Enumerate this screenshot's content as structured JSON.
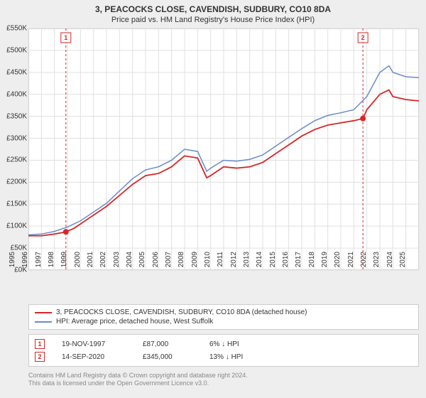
{
  "title": "3, PEACOCKS CLOSE, CAVENDISH, SUDBURY, CO10 8DA",
  "subtitle": "Price paid vs. HM Land Registry's House Price Index (HPI)",
  "chart": {
    "type": "line",
    "background_color": "#ffffff",
    "page_background": "#eeeeee",
    "grid_color": "#e0e0e0",
    "axis_font_size": 10,
    "title_fontsize": 12,
    "xlim": [
      1995,
      2025
    ],
    "ylim": [
      0,
      550
    ],
    "ytick_step": 50,
    "yticks_label_prefix": "£",
    "yticks_label_suffix": "K",
    "xticks": [
      1995,
      1996,
      1997,
      1998,
      1999,
      2000,
      2001,
      2002,
      2003,
      2004,
      2005,
      2006,
      2007,
      2008,
      2009,
      2010,
      2011,
      2012,
      2013,
      2014,
      2015,
      2016,
      2017,
      2018,
      2019,
      2020,
      2021,
      2022,
      2023,
      2024,
      2025
    ],
    "series": [
      {
        "name": "price_paid",
        "label": "3, PEACOCKS CLOSE, CAVENDISH, SUDBURY, CO10 8DA (detached house)",
        "color": "#d62728",
        "line_width": 1.8,
        "data": [
          [
            1995,
            78
          ],
          [
            1996,
            78
          ],
          [
            1997,
            82
          ],
          [
            1997.88,
            87
          ],
          [
            1998.5,
            95
          ],
          [
            1999,
            105
          ],
          [
            2000,
            125
          ],
          [
            2001,
            145
          ],
          [
            2002,
            170
          ],
          [
            2003,
            195
          ],
          [
            2004,
            215
          ],
          [
            2005,
            220
          ],
          [
            2006,
            235
          ],
          [
            2007,
            260
          ],
          [
            2008,
            255
          ],
          [
            2008.7,
            210
          ],
          [
            2009,
            215
          ],
          [
            2010,
            235
          ],
          [
            2011,
            232
          ],
          [
            2012,
            235
          ],
          [
            2013,
            245
          ],
          [
            2014,
            265
          ],
          [
            2015,
            285
          ],
          [
            2016,
            305
          ],
          [
            2017,
            320
          ],
          [
            2018,
            330
          ],
          [
            2019,
            335
          ],
          [
            2020,
            340
          ],
          [
            2020.7,
            345
          ],
          [
            2021,
            365
          ],
          [
            2022,
            400
          ],
          [
            2022.7,
            410
          ],
          [
            2023,
            395
          ],
          [
            2024,
            388
          ],
          [
            2025,
            385
          ]
        ]
      },
      {
        "name": "hpi",
        "label": "HPI: Average price, detached house, West Suffolk",
        "color": "#6a8bc9",
        "line_width": 1.5,
        "data": [
          [
            1995,
            80
          ],
          [
            1996,
            82
          ],
          [
            1997,
            88
          ],
          [
            1998,
            98
          ],
          [
            1999,
            112
          ],
          [
            2000,
            132
          ],
          [
            2001,
            152
          ],
          [
            2002,
            180
          ],
          [
            2003,
            208
          ],
          [
            2004,
            228
          ],
          [
            2005,
            235
          ],
          [
            2006,
            250
          ],
          [
            2007,
            275
          ],
          [
            2008,
            270
          ],
          [
            2008.7,
            225
          ],
          [
            2009,
            232
          ],
          [
            2010,
            250
          ],
          [
            2011,
            248
          ],
          [
            2012,
            252
          ],
          [
            2013,
            262
          ],
          [
            2014,
            282
          ],
          [
            2015,
            302
          ],
          [
            2016,
            322
          ],
          [
            2017,
            340
          ],
          [
            2018,
            352
          ],
          [
            2019,
            358
          ],
          [
            2020,
            365
          ],
          [
            2021,
            395
          ],
          [
            2022,
            450
          ],
          [
            2022.7,
            465
          ],
          [
            2023,
            450
          ],
          [
            2024,
            440
          ],
          [
            2025,
            438
          ]
        ]
      }
    ],
    "event_markers": [
      {
        "n": "1",
        "x": 1997.88,
        "y": 87,
        "box_color": "#d62728",
        "dot_color": "#d62728"
      },
      {
        "n": "2",
        "x": 2020.7,
        "y": 345,
        "box_color": "#d62728",
        "dot_color": "#d62728"
      }
    ]
  },
  "legend": {
    "border_color": "#cccccc",
    "items": [
      {
        "color": "#d62728",
        "label": "3, PEACOCKS CLOSE, CAVENDISH, SUDBURY, CO10 8DA (detached house)"
      },
      {
        "color": "#6a8bc9",
        "label": "HPI: Average price, detached house, West Suffolk"
      }
    ]
  },
  "events": [
    {
      "n": "1",
      "date": "19-NOV-1997",
      "price": "£87,000",
      "delta": "6% ↓ HPI"
    },
    {
      "n": "2",
      "date": "14-SEP-2020",
      "price": "£345,000",
      "delta": "13% ↓ HPI"
    }
  ],
  "license": {
    "line1": "Contains HM Land Registry data © Crown copyright and database right 2024.",
    "line2": "This data is licensed under the Open Government Licence v3.0."
  }
}
